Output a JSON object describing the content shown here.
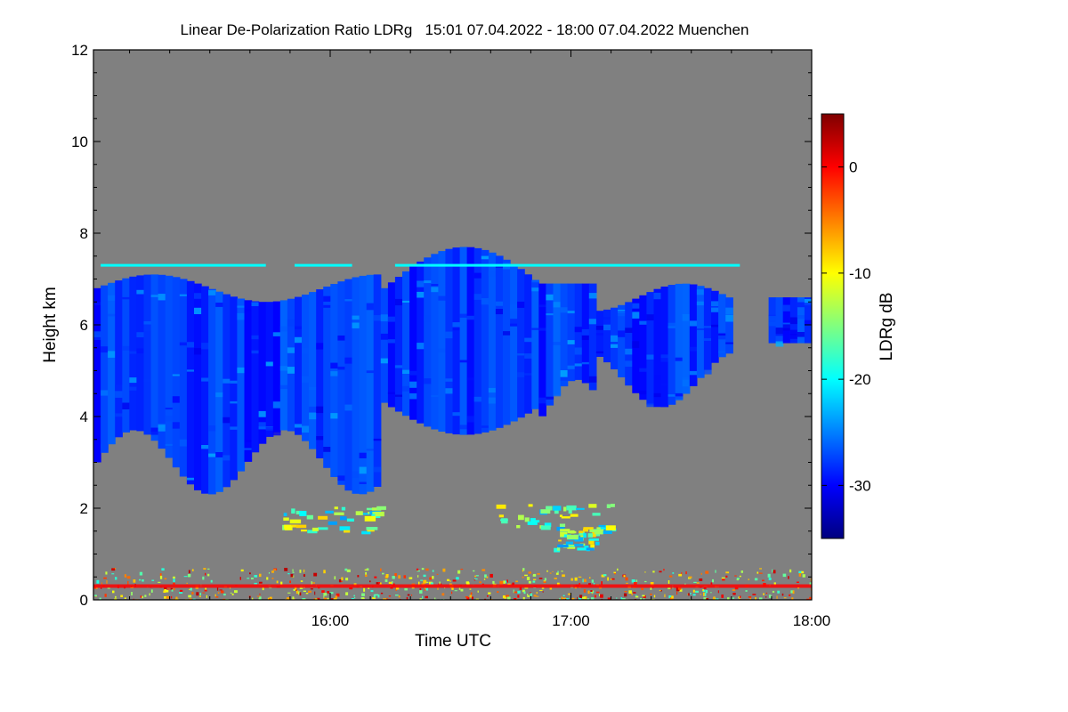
{
  "chart_data": {
    "type": "heatmap",
    "title": "Linear De-Polarization Ratio LDRg   15:01 07.04.2022 - 18:00 07.04.2022 Muenchen",
    "xlabel": "Time UTC",
    "ylabel": "Height km",
    "colorbar_label": "LDRg dB",
    "x_range_hours": [
      15.0167,
      18.0
    ],
    "x_ticks": [
      {
        "value": 16.0,
        "label": "16:00"
      },
      {
        "value": 17.0,
        "label": "17:00"
      },
      {
        "value": 18.0,
        "label": "18:00"
      }
    ],
    "x_minor_step_min": 10,
    "ylim": [
      0,
      12
    ],
    "y_ticks": [
      {
        "value": 0,
        "label": "0"
      },
      {
        "value": 2,
        "label": "2"
      },
      {
        "value": 4,
        "label": "4"
      },
      {
        "value": 6,
        "label": "6"
      },
      {
        "value": 8,
        "label": "8"
      },
      {
        "value": 10,
        "label": "10"
      },
      {
        "value": 12,
        "label": "12"
      }
    ],
    "color_range_db": [
      -35,
      5
    ],
    "colorbar_ticks": [
      {
        "value": 0,
        "label": "0"
      },
      {
        "value": -10,
        "label": "-10"
      },
      {
        "value": -20,
        "label": "-20"
      },
      {
        "value": -30,
        "label": "-30"
      }
    ],
    "background_color": "#808080",
    "features": [
      {
        "name": "cirrus-cloud-layer",
        "approx_height_km": [
          2.5,
          8.0
        ],
        "approx_ldr_db": -28
      },
      {
        "name": "artifact-line",
        "approx_height_km": 7.3,
        "approx_ldr_db": -20
      },
      {
        "name": "boundary-layer-aerosol",
        "approx_height_km": [
          1.2,
          2.1
        ],
        "approx_ldr_db": -18
      },
      {
        "name": "near-surface-noise",
        "approx_height_km": [
          0.0,
          0.7
        ],
        "approx_ldr_db": -5
      }
    ]
  }
}
